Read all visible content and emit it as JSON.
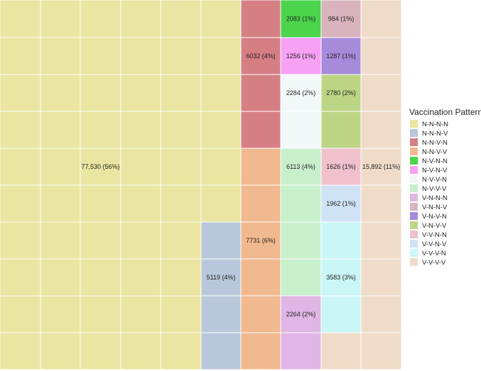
{
  "chart_data": {
    "type": "waffle",
    "title": "",
    "legend_title": "Vaccination Pattern",
    "legend_position": "right",
    "grid": {
      "columns": 10,
      "rows": 10,
      "column_fill": "top-down"
    },
    "categories": [
      {
        "name": "N-N-N-N",
        "color": "#eae5a0",
        "label": "77,530 (56%)",
        "cells": 56
      },
      {
        "name": "N-N-N-V",
        "color": "#b8c8da",
        "label": "5119 (4%)",
        "cells": 4
      },
      {
        "name": "N-N-V-N",
        "color": "#d57f84",
        "label": "6032 (4%)",
        "cells": 4
      },
      {
        "name": "N-N-V-V",
        "color": "#f1b98f",
        "label": "7731 (6%)",
        "cells": 6
      },
      {
        "name": "N-V-N-N",
        "color": "#4bd44c",
        "label": "2083 (1%)",
        "cells": 1
      },
      {
        "name": "N-V-N-V",
        "color": "#f7a1f4",
        "label": "1256 (1%)",
        "cells": 1
      },
      {
        "name": "N-V-V-N",
        "color": "#f3f9fb",
        "label": "2284 (2%)",
        "cells": 2
      },
      {
        "name": "N-V-V-V",
        "color": "#c8efcc",
        "label": "6113 (4%)",
        "cells": 4
      },
      {
        "name": "V-N-N-N",
        "color": "#e0b6e4",
        "label": "2264 (2%)",
        "cells": 2
      },
      {
        "name": "V-N-N-V",
        "color": "#d9b3bd",
        "label": "984 (1%)",
        "cells": 1
      },
      {
        "name": "V-N-V-N",
        "color": "#a68bda",
        "label": "1287 (1%)",
        "cells": 1
      },
      {
        "name": "V-N-V-V",
        "color": "#bcd585",
        "label": "2780 (2%)",
        "cells": 2
      },
      {
        "name": "V-V-N-N",
        "color": "#f0c0cc",
        "label": "1626 (1%)",
        "cells": 1
      },
      {
        "name": "V-V-N-V",
        "color": "#cfe2f6",
        "label": "1962 (1%)",
        "cells": 1
      },
      {
        "name": "V-V-V-N",
        "color": "#cbf6f7",
        "label": "3583 (3%)",
        "cells": 3
      },
      {
        "name": "V-V-V-V",
        "color": "#efdcc8",
        "label": "15,892 (11%)",
        "cells": 11
      }
    ],
    "cell_layout": [
      [
        "N-N-N-N",
        "N-N-N-N",
        "N-N-N-N",
        "N-N-N-N",
        "N-N-N-N",
        "N-N-N-N",
        "N-N-V-N",
        "N-V-N-N",
        "V-N-N-V",
        "V-V-V-V"
      ],
      [
        "N-N-N-N",
        "N-N-N-N",
        "N-N-N-N",
        "N-N-N-N",
        "N-N-N-N",
        "N-N-N-N",
        "N-N-V-N",
        "N-V-N-V",
        "V-N-V-N",
        "V-V-V-V"
      ],
      [
        "N-N-N-N",
        "N-N-N-N",
        "N-N-N-N",
        "N-N-N-N",
        "N-N-N-N",
        "N-N-N-N",
        "N-N-V-N",
        "N-V-V-N",
        "V-N-V-V",
        "V-V-V-V"
      ],
      [
        "N-N-N-N",
        "N-N-N-N",
        "N-N-N-N",
        "N-N-N-N",
        "N-N-N-N",
        "N-N-N-N",
        "N-N-V-N",
        "N-V-V-N",
        "V-N-V-V",
        "V-V-V-V"
      ],
      [
        "N-N-N-N",
        "N-N-N-N",
        "N-N-N-N",
        "N-N-N-N",
        "N-N-N-N",
        "N-N-N-N",
        "N-N-V-V",
        "N-V-V-V",
        "V-V-N-N",
        "V-V-V-V"
      ],
      [
        "N-N-N-N",
        "N-N-N-N",
        "N-N-N-N",
        "N-N-N-N",
        "N-N-N-N",
        "N-N-N-N",
        "N-N-V-V",
        "N-V-V-V",
        "V-V-N-V",
        "V-V-V-V"
      ],
      [
        "N-N-N-N",
        "N-N-N-N",
        "N-N-N-N",
        "N-N-N-N",
        "N-N-N-N",
        "N-N-N-V",
        "N-N-V-V",
        "N-V-V-V",
        "V-V-V-N",
        "V-V-V-V"
      ],
      [
        "N-N-N-N",
        "N-N-N-N",
        "N-N-N-N",
        "N-N-N-N",
        "N-N-N-N",
        "N-N-N-V",
        "N-N-V-V",
        "N-V-V-V",
        "V-V-V-N",
        "V-V-V-V"
      ],
      [
        "N-N-N-N",
        "N-N-N-N",
        "N-N-N-N",
        "N-N-N-N",
        "N-N-N-N",
        "N-N-N-V",
        "N-N-V-V",
        "V-N-N-N",
        "V-V-V-N",
        "V-V-V-V"
      ],
      [
        "N-N-N-N",
        "N-N-N-N",
        "N-N-N-N",
        "N-N-N-N",
        "N-N-N-N",
        "N-N-N-V",
        "N-N-V-V",
        "V-N-N-N",
        "V-V-V-V",
        "V-V-V-V"
      ]
    ],
    "label_cells": {
      "N-N-N-N": [
        4,
        2
      ],
      "N-N-N-V": [
        7,
        5
      ],
      "N-N-V-N": [
        1,
        6
      ],
      "N-N-V-V": [
        6,
        6
      ],
      "N-V-N-N": [
        0,
        7
      ],
      "N-V-N-V": [
        1,
        7
      ],
      "N-V-V-N": [
        2,
        7
      ],
      "N-V-V-V": [
        4,
        7
      ],
      "V-N-N-N": [
        8,
        7
      ],
      "V-N-N-V": [
        0,
        8
      ],
      "V-N-V-N": [
        1,
        8
      ],
      "V-N-V-V": [
        2,
        8
      ],
      "V-V-N-N": [
        4,
        8
      ],
      "V-V-N-V": [
        5,
        8
      ],
      "V-V-V-N": [
        7,
        8
      ],
      "V-V-V-V": [
        4,
        9
      ]
    }
  }
}
